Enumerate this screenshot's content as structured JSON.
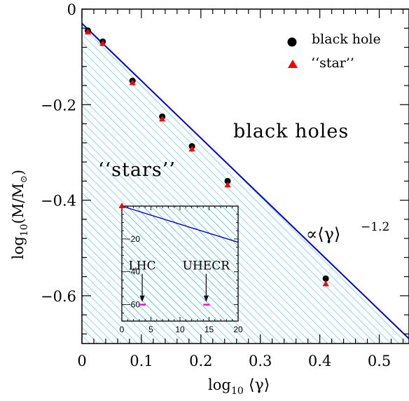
{
  "chart_data": {
    "type": "scatter",
    "xlabel": "log",
    "xlabel_sub": "10",
    "xlabel_var": "⟨γ⟩",
    "ylabel": "log",
    "ylabel_sub": "10",
    "ylabel_var": "(M/M",
    "ylabel_sun": "⊙",
    "ylabel_close": ")",
    "xlim": [
      0,
      0.55
    ],
    "ylim": [
      -0.7,
      0
    ],
    "x_ticks": [
      0,
      0.1,
      0.2,
      0.3,
      0.4,
      0.5
    ],
    "x_tick_labels": [
      "0",
      "0.1",
      "0.2",
      "0.3",
      "0.4",
      "0.5"
    ],
    "y_ticks": [
      0,
      -0.2,
      -0.4,
      -0.6
    ],
    "y_tick_labels": [
      "0",
      "−0.2",
      "−0.4",
      "−0.6"
    ],
    "fit_line": {
      "x": [
        0,
        0.55
      ],
      "y": [
        -0.03,
        -0.69
      ],
      "label": "∝⟨γ⟩",
      "exponent": "−1.2"
    },
    "regions": {
      "above": "black holes",
      "below": "‘‘stars’’"
    },
    "legend": {
      "placement": "top-right",
      "items": [
        {
          "name": "black hole",
          "marker": "circle",
          "color": "#000000"
        },
        {
          "name": "‘‘star’’",
          "marker": "triangle",
          "color": "#ff0000"
        }
      ]
    },
    "series": [
      {
        "name": "black hole",
        "marker": "circle",
        "color": "#000000",
        "points": [
          [
            0.01,
            -0.045
          ],
          [
            0.035,
            -0.068
          ],
          [
            0.085,
            -0.15
          ],
          [
            0.135,
            -0.225
          ],
          [
            0.185,
            -0.287
          ],
          [
            0.245,
            -0.36
          ],
          [
            0.41,
            -0.564
          ]
        ]
      },
      {
        "name": "‘‘star’’",
        "marker": "triangle",
        "color": "#ff0000",
        "points": [
          [
            0.01,
            -0.048
          ],
          [
            0.035,
            -0.072
          ],
          [
            0.085,
            -0.154
          ],
          [
            0.135,
            -0.23
          ],
          [
            0.185,
            -0.293
          ],
          [
            0.245,
            -0.368
          ],
          [
            0.41,
            -0.575
          ]
        ]
      }
    ],
    "inset": {
      "xlim": [
        0,
        20
      ],
      "ylim": [
        -70,
        0
      ],
      "x_ticks": [
        0,
        5,
        10,
        15,
        20
      ],
      "x_tick_labels": [
        "0",
        "5",
        "10",
        "15",
        "20"
      ],
      "y_ticks": [
        -20,
        -40,
        -60
      ],
      "y_tick_labels": [
        "−20",
        "−40",
        "−60"
      ],
      "line": {
        "x": [
          0,
          20
        ],
        "y": [
          0,
          -22
        ]
      },
      "point": [
        0,
        0
      ],
      "annotations": [
        {
          "label": "LHC",
          "x": 3.5,
          "y": -60
        },
        {
          "label": "UHECR",
          "x": 14.5,
          "y": -60
        }
      ]
    },
    "colors": {
      "line": "#0000dd",
      "hatch": "#33bbdd",
      "marker_bh": "#000000",
      "marker_star": "#ff0000",
      "inset_mark": "#ff00ff"
    }
  }
}
